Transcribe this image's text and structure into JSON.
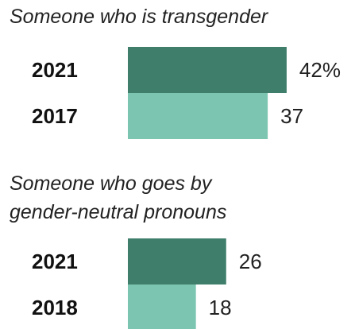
{
  "chart_data": [
    {
      "type": "bar",
      "orientation": "horizontal",
      "title": "Someone who is transgender",
      "categories": [
        "2021",
        "2017"
      ],
      "values": [
        42,
        37
      ],
      "value_labels": [
        "42%",
        "37"
      ],
      "colors": [
        "#3f7e6b",
        "#7cc6b1"
      ]
    },
    {
      "type": "bar",
      "orientation": "horizontal",
      "title_lines": [
        "Someone who goes by",
        "gender-neutral pronouns"
      ],
      "categories": [
        "2021",
        "2018"
      ],
      "values": [
        26,
        18
      ],
      "value_labels": [
        "26",
        "18"
      ],
      "colors": [
        "#3f7e6b",
        "#7cc6b1"
      ]
    }
  ]
}
